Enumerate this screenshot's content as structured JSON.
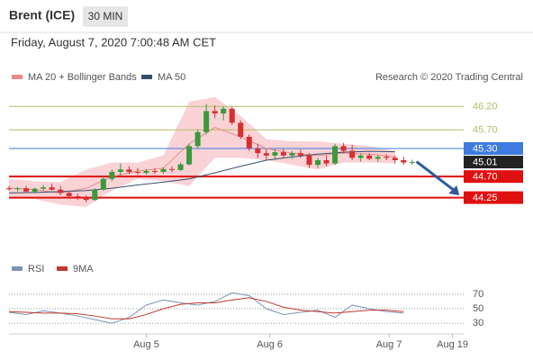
{
  "header": {
    "instrument": "Brent (ICE)",
    "timeframe": "30 MIN",
    "datetime": "Friday, August 7, 2020 7:00:48 AM CET"
  },
  "chart_data": [
    {
      "type": "candlestick",
      "credit": "Research © 2020 Trading Central",
      "up_color": "#3a9a3a",
      "down_color": "#d63030",
      "xlim": [
        0,
        53
      ],
      "ylim": [
        43.28,
        46.55
      ],
      "xticks": [
        {
          "value": 16,
          "label": "Aug 5"
        },
        {
          "value": 30.4,
          "label": "Aug 6"
        },
        {
          "value": 44.3,
          "label": "Aug 7"
        },
        {
          "value": 51.7,
          "label": "Aug 19"
        }
      ],
      "x": [
        0,
        1,
        2,
        3,
        4,
        5,
        6,
        7,
        8,
        9,
        10,
        11,
        12,
        13,
        14,
        15,
        16,
        17,
        18,
        19,
        20,
        21,
        22,
        23,
        24,
        25,
        26,
        27,
        28,
        29,
        30,
        31,
        32,
        33,
        34,
        35,
        36,
        37,
        38,
        39,
        40,
        41,
        42,
        43,
        44,
        45,
        46,
        47
      ],
      "open": [
        44.45,
        44.43,
        44.45,
        44.38,
        44.44,
        44.47,
        44.42,
        44.35,
        44.28,
        44.25,
        44.2,
        44.42,
        44.65,
        44.8,
        44.85,
        44.8,
        44.78,
        44.82,
        44.8,
        44.86,
        44.84,
        44.96,
        45.35,
        45.65,
        46.1,
        46.05,
        46.15,
        45.85,
        45.55,
        45.3,
        45.2,
        45.15,
        45.22,
        45.15,
        45.2,
        45.15,
        44.95,
        45.05,
        44.98,
        45.35,
        45.25,
        45.1,
        45.15,
        45.08,
        45.12,
        45.1,
        45.05,
        45
      ],
      "high": [
        44.5,
        44.48,
        44.5,
        44.46,
        44.52,
        44.55,
        44.5,
        44.4,
        44.34,
        44.3,
        44.45,
        44.7,
        44.85,
        44.98,
        44.92,
        44.88,
        44.86,
        44.88,
        44.9,
        44.92,
        45,
        45.4,
        45.7,
        46.25,
        46.22,
        46.2,
        46.2,
        45.9,
        45.6,
        45.4,
        45.3,
        45.28,
        45.3,
        45.25,
        45.28,
        45.2,
        45.1,
        45.15,
        45.4,
        45.42,
        45.38,
        45.2,
        45.2,
        45.15,
        45.18,
        45.15,
        45.12,
        45.06
      ],
      "low": [
        44.4,
        44.38,
        44.35,
        44.34,
        44.4,
        44.4,
        44.3,
        44.25,
        44.2,
        44.15,
        44.18,
        44.4,
        44.6,
        44.72,
        44.75,
        44.74,
        44.74,
        44.76,
        44.76,
        44.8,
        44.82,
        44.94,
        45.3,
        45.6,
        45.95,
        45.9,
        45.8,
        45.5,
        45.25,
        45.1,
        45.05,
        45.08,
        45.1,
        45.08,
        45.1,
        44.88,
        44.88,
        44.92,
        44.95,
        45.2,
        45.05,
        45.02,
        45.05,
        45.02,
        45.05,
        44.98,
        44.95,
        44.95
      ],
      "close": [
        44.43,
        44.45,
        44.38,
        44.44,
        44.47,
        44.42,
        44.35,
        44.28,
        44.25,
        44.2,
        44.42,
        44.65,
        44.8,
        44.85,
        44.8,
        44.78,
        44.82,
        44.8,
        44.86,
        44.84,
        44.96,
        45.35,
        45.65,
        46.1,
        46.05,
        46.15,
        45.85,
        45.55,
        45.3,
        45.2,
        45.15,
        45.22,
        45.15,
        45.2,
        45.15,
        44.95,
        45.05,
        44.98,
        45.35,
        45.25,
        45.1,
        45.15,
        45.08,
        45.12,
        45.1,
        45.05,
        45,
        45.01
      ],
      "series": [
        {
          "name": "MA 20 + Bollinger Bands",
          "color": "#e88a8a",
          "band_color": "#f8c8cc",
          "x": [
            0,
            3,
            6,
            9,
            12,
            15,
            18,
            21,
            24,
            27,
            30,
            33,
            36,
            39,
            42,
            45
          ],
          "values": [
            44.45,
            44.42,
            44.35,
            44.45,
            44.7,
            44.82,
            44.88,
            45.4,
            45.75,
            45.55,
            45.3,
            45.2,
            45.15,
            45.2,
            45.18,
            45.12
          ],
          "upper": [
            44.65,
            44.6,
            44.58,
            44.85,
            45,
            45,
            45.15,
            46.3,
            46.4,
            46,
            45.5,
            45.45,
            45.45,
            45.4,
            45.35,
            45.25
          ],
          "lower": [
            44.25,
            44.22,
            44.1,
            44.05,
            44.4,
            44.65,
            44.6,
            44.5,
            45.1,
            45.1,
            45.05,
            44.95,
            44.85,
            45,
            45,
            44.98
          ]
        },
        {
          "name": "MA 50",
          "color": "#34506e",
          "x": [
            0,
            3,
            6,
            9,
            12,
            15,
            18,
            21,
            24,
            27,
            30,
            33,
            36,
            39,
            42,
            45
          ],
          "values": [
            44.35,
            44.36,
            44.38,
            44.4,
            44.45,
            44.52,
            44.58,
            44.65,
            44.78,
            44.92,
            45.05,
            45.12,
            45.18,
            45.22,
            45.24,
            45.23
          ]
        }
      ],
      "levels": [
        {
          "value": 46.2,
          "label": "46.20",
          "color": "#b5bd68",
          "box": false
        },
        {
          "value": 45.7,
          "label": "45.70",
          "color": "#b5bd68",
          "box": false
        },
        {
          "value": 45.3,
          "label": "45.30",
          "color": "#3d7be0",
          "box": true
        },
        {
          "value": 45.01,
          "label": "45.01",
          "color": "#222222",
          "box": true
        },
        {
          "value": 44.7,
          "label": "44.70",
          "color": "#e01010",
          "box": true
        },
        {
          "value": 44.25,
          "label": "44.25",
          "color": "#e01010",
          "box": true
        }
      ],
      "forecast": {
        "x": [
          47.5,
          52.5
        ],
        "values": [
          45.02,
          44.3
        ],
        "color": "#2e5b9a"
      }
    },
    {
      "type": "line",
      "ylim": [
        19,
        81
      ],
      "yticks": [
        30,
        50,
        70
      ],
      "xlim": [
        0,
        53
      ],
      "series": [
        {
          "name": "RSI",
          "color": "#7f93b8",
          "x": [
            0,
            2,
            4,
            6,
            8,
            10,
            12,
            14,
            16,
            18,
            20,
            22,
            24,
            26,
            28,
            30,
            32,
            34,
            36,
            38,
            40,
            42,
            44,
            46
          ],
          "values": [
            45,
            42,
            47,
            44,
            40,
            35,
            30,
            38,
            55,
            62,
            58,
            55,
            60,
            72,
            68,
            50,
            42,
            45,
            48,
            38,
            55,
            50,
            46,
            44
          ]
        },
        {
          "name": "9MA",
          "color": "#c0392b",
          "x": [
            0,
            2,
            4,
            6,
            8,
            10,
            12,
            14,
            16,
            18,
            20,
            22,
            24,
            26,
            28,
            30,
            32,
            34,
            36,
            38,
            40,
            42,
            44,
            46
          ],
          "values": [
            46,
            45,
            44,
            44,
            43,
            40,
            36,
            36,
            42,
            50,
            56,
            58,
            58,
            62,
            65,
            60,
            52,
            48,
            46,
            44,
            46,
            48,
            48,
            46
          ]
        }
      ]
    }
  ]
}
